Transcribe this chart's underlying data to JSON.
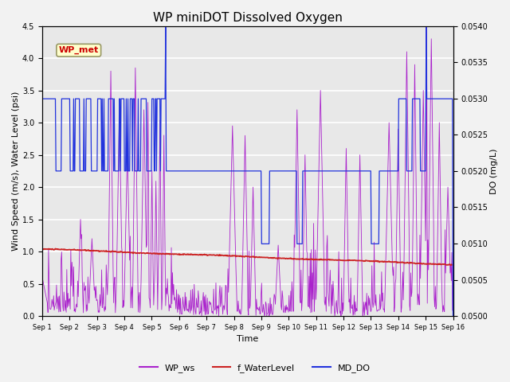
{
  "title": "WP miniDOT Dissolved Oxygen",
  "xlabel": "Time",
  "ylabel_left": "Wind Speed (m/s), Water Level (psi)",
  "ylabel_right": "DO (mg/L)",
  "ylim_left": [
    0.0,
    4.5
  ],
  "ylim_right": [
    0.05,
    0.054
  ],
  "xtick_labels": [
    "Sep 1",
    "Sep 2",
    "Sep 3",
    "Sep 4",
    "Sep 5",
    "Sep 6",
    "Sep 7",
    "Sep 8",
    "Sep 9",
    "Sep 10",
    "Sep 11",
    "Sep 12",
    "Sep 13",
    "Sep 14",
    "Sep 15",
    "Sep 16"
  ],
  "legend_labels": [
    "WP_ws",
    "f_WaterLevel",
    "MD_DO"
  ],
  "wp_ws_color": "#aa22cc",
  "wl_color": "#cc2222",
  "do_color": "#2233dd",
  "wp_met_label": "WP_met",
  "wp_met_color": "#cc0000",
  "wp_met_bg": "#ffffcc",
  "wp_met_border": "#999966",
  "fig_bg": "#f2f2f2",
  "plot_bg": "#e8e8e8",
  "grid_color": "#ffffff",
  "title_fontsize": 11,
  "axis_fontsize": 8,
  "tick_fontsize": 7,
  "legend_fontsize": 8
}
